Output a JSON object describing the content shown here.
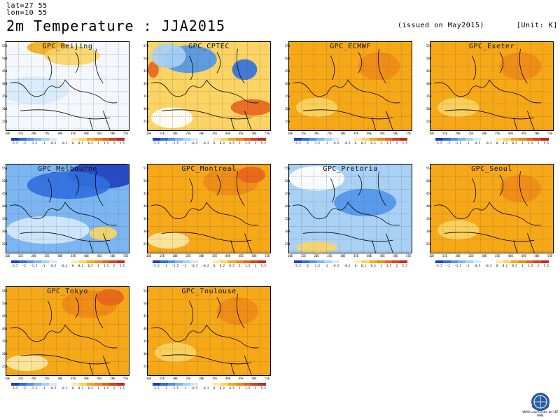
{
  "header": {
    "lat": "lat=27 55",
    "lon": "lon=10 55",
    "title": "2m Temperature : JJA2015",
    "issued": "(issued on May2015)",
    "unit": "[Unit: K]"
  },
  "y_ticks": [
    "55N",
    "50N",
    "45N",
    "40N",
    "35N",
    "30N",
    "25N"
  ],
  "x_ticks": [
    "10E",
    "15E",
    "20E",
    "25E",
    "30E",
    "35E",
    "40E",
    "45E",
    "50E",
    "55E"
  ],
  "colorbar": {
    "colors": [
      "#1f3fbf",
      "#2f6fe0",
      "#4f95ec",
      "#7cb6f2",
      "#a9d1f6",
      "#d6eafb",
      "#ffffff",
      "#ffffff",
      "#fde9a8",
      "#fbd464",
      "#f6a817",
      "#f08a16",
      "#e8641c",
      "#d94122",
      "#c42a1e"
    ],
    "labels": [
      "-5.5",
      "-2",
      "-1.5",
      "-1",
      "-0.5",
      "-0.2",
      "0",
      "0.2",
      "0.5",
      "1",
      "1.5",
      "2",
      "5.5"
    ]
  },
  "panels": [
    {
      "name": "GPC_Beijing",
      "palette": "white"
    },
    {
      "name": "GPC_CPTEC",
      "palette": "mixed"
    },
    {
      "name": "GPC_ECMWF",
      "palette": "orange"
    },
    {
      "name": "GPC_Exeter",
      "palette": "orange"
    },
    {
      "name": "GPC_Melbourne",
      "palette": "blue"
    },
    {
      "name": "GPC_Montreal",
      "palette": "orange"
    },
    {
      "name": "GPC_Pretoria",
      "palette": "lightblue"
    },
    {
      "name": "GPC_Seoul",
      "palette": "orange"
    },
    {
      "name": "GPC_Tokyo",
      "palette": "orange"
    },
    {
      "name": "GPC_Toulouse",
      "palette": "orange"
    }
  ],
  "logo": {
    "text": "WMO Lead Centre for LRF MME",
    "icon": "wmo-emblem-icon"
  }
}
